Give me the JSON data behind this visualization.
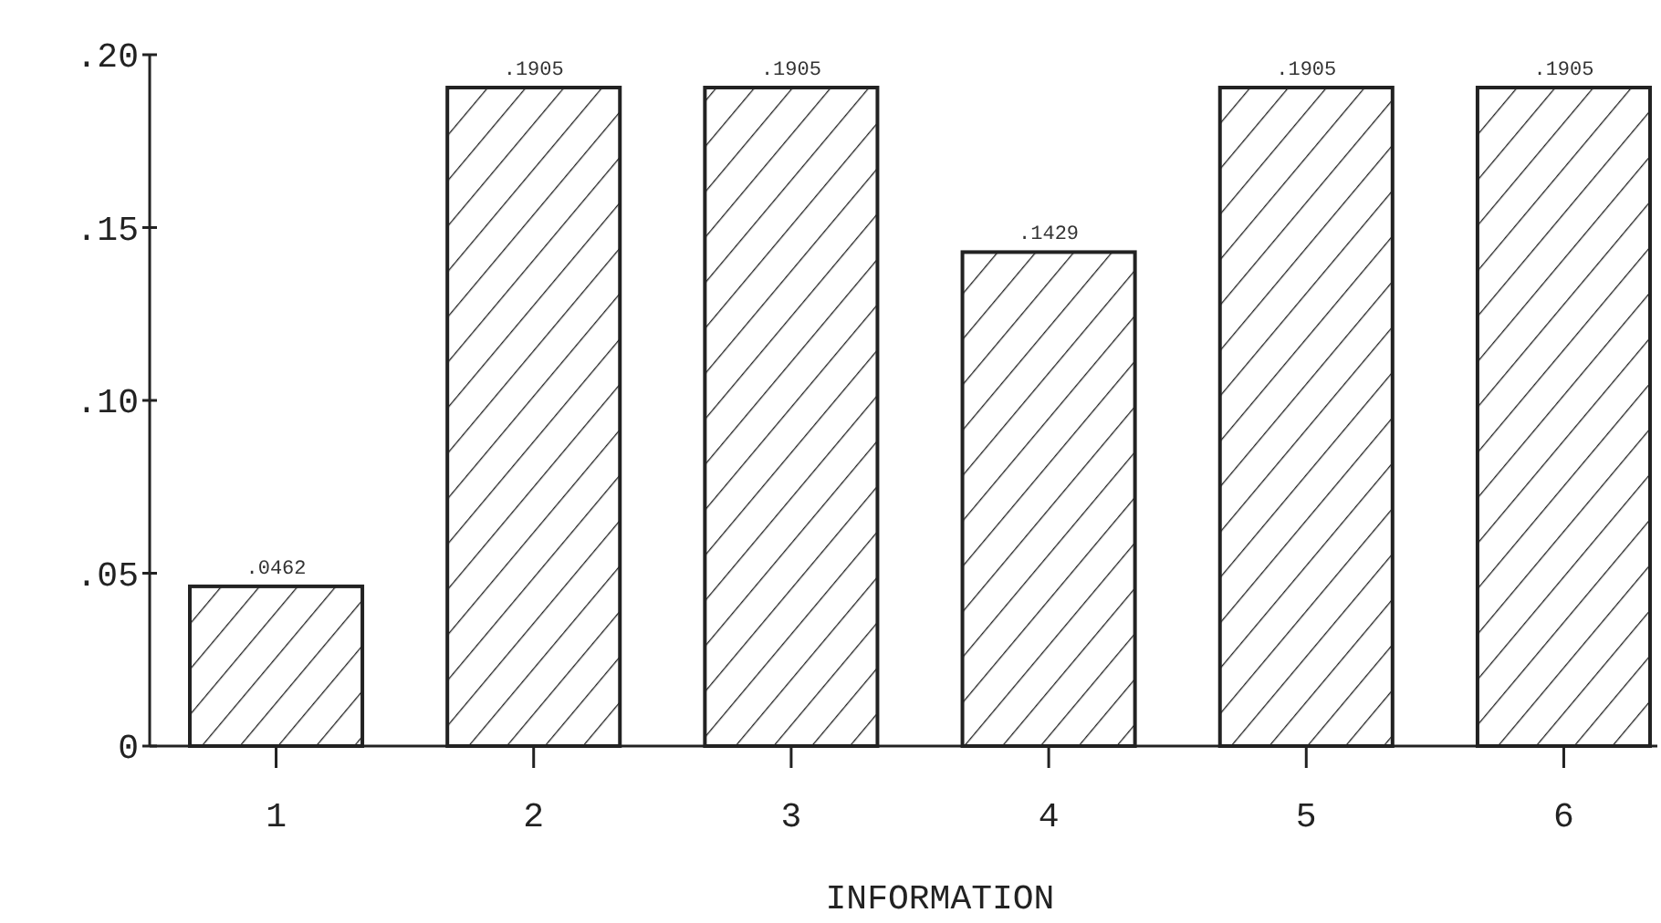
{
  "chart_data": {
    "type": "bar",
    "xlabel": "INFORMATION",
    "categories": [
      "1",
      "2",
      "3",
      "4",
      "5",
      "6"
    ],
    "values": [
      0.0462,
      0.1905,
      0.1905,
      0.1429,
      0.1905,
      0.1905
    ],
    "value_labels": [
      ".0462",
      ".1905",
      ".1905",
      ".1429",
      ".1905",
      ".1905"
    ],
    "color": "#222222",
    "ylim": [
      0,
      0.2
    ],
    "yticks": [
      {
        "value": 0,
        "label": "0"
      },
      {
        "value": 0.05,
        "label": ".05"
      },
      {
        "value": 0.1,
        "label": ".10"
      },
      {
        "value": 0.15,
        "label": ".15"
      },
      {
        "value": 0.2,
        "label": ".20"
      }
    ],
    "grid": false
  }
}
